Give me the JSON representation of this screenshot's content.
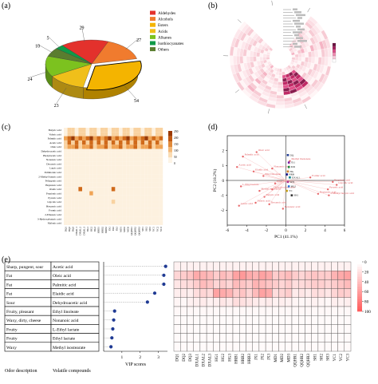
{
  "panels": {
    "a": {
      "label": "(a)"
    },
    "b": {
      "label": "(b)"
    },
    "c": {
      "label": "(c)"
    },
    "d": {
      "label": "(d)"
    },
    "e": {
      "label": "(e)"
    }
  },
  "colors": {
    "aldehydes": "#e3312c",
    "alcohols": "#f07b2e",
    "esters": "#f4b400",
    "acids": "#f0bf1a",
    "alkanes": "#7cc21f",
    "isothiocyanates": "#0f9a48",
    "others": "#5a7d2f",
    "heat_high": "#f5b4b4",
    "dot_navy": "#1f3a93"
  },
  "chart_data": [
    {
      "panel": "a",
      "type": "pie",
      "legend_position": "top-right",
      "categories": [
        "Aldehydes",
        "Alcohols",
        "Esters",
        "Acids",
        "Alkanes",
        "Isothiocyanates",
        "Others"
      ],
      "slice_labels": [
        "29",
        "27",
        "54",
        "23",
        "24",
        "5",
        "10"
      ],
      "values": [
        29,
        27,
        54,
        23,
        24,
        5,
        10
      ]
    },
    {
      "panel": "c",
      "type": "heatmap",
      "legend_position": "right",
      "colorbar_ticks": [
        "250",
        "200",
        "150",
        "100",
        "50",
        "0"
      ],
      "rows": [
        "Butyric acid",
        "Valeric acid",
        "Palmitic acid",
        "Acetic acid",
        "Oleic acid",
        "Dehydroacetic acid",
        "Phenylacetic acid",
        "Nonanoic acid",
        "Decanoic acid",
        "Lauric acid",
        "Palmitoleic acid",
        "2-Methyl butyric acid",
        "Pelargonic acid",
        "Heptanoic acid",
        "Oxalic acid",
        "Propionic acid",
        "Pyruvic acid",
        "Glycolic acid",
        "Hexanoic acid",
        "Formic acid",
        "2-Ethanoic acid",
        "3-Hydroxybutyric acid",
        "Malonic acid"
      ],
      "columns": [
        "DQ1",
        "DQ2",
        "DQ3",
        "DXAL1",
        "DXAL2",
        "DXAL3",
        "HG1",
        "HG2",
        "HG3",
        "HRB1",
        "HRB2",
        "HRB3",
        "JX1",
        "JX2",
        "JX3",
        "MD1",
        "MD2",
        "MD3",
        "QQHR1",
        "QQHR2",
        "QQHR3",
        "SH1",
        "SH2",
        "SH3",
        "YC1",
        "YC2",
        "YC3"
      ]
    },
    {
      "panel": "d",
      "type": "scatter",
      "xlabel": "PC1 (41.1%)",
      "ylabel": "PC2 (18.2%)",
      "xlim": [
        -6,
        6
      ],
      "ylim": [
        -3,
        3
      ],
      "xticks": [
        "-6",
        "-4",
        "-2",
        "0",
        "2",
        "4",
        "6"
      ],
      "yticks": [
        "2",
        "1",
        "0",
        "-1",
        "-2"
      ],
      "series": [
        {
          "name": "compounds",
          "points": [
            [
              -4.4,
              1.6
            ],
            [
              -3.0,
              1.9
            ],
            [
              -5.0,
              0.9
            ],
            [
              -3.3,
              0.6
            ],
            [
              -1.4,
              0.8
            ],
            [
              -2.3,
              0.3
            ],
            [
              0.4,
              1.3
            ],
            [
              -1.1,
              -0.2
            ],
            [
              -4.6,
              -0.4
            ],
            [
              -2.7,
              -0.7
            ],
            [
              -1.4,
              -0.6
            ],
            [
              -2.2,
              -1.1
            ],
            [
              -3.1,
              -1.5
            ],
            [
              -4.8,
              -1.7
            ],
            [
              -1.7,
              -1.6
            ],
            [
              -0.3,
              -1.9
            ],
            [
              2.5,
              0.2
            ],
            [
              4.8,
              -0.1
            ],
            [
              5.2,
              -0.3
            ],
            [
              4.3,
              -0.6
            ],
            [
              3.3,
              -0.9
            ],
            [
              4.4,
              -1.0
            ]
          ]
        },
        {
          "name": "samples",
          "points": [
            [
              0.2,
              1.7
            ],
            [
              0.3,
              1.2
            ],
            [
              0.3,
              0.9
            ],
            [
              0.2,
              0.6
            ],
            [
              0.4,
              0.2
            ],
            [
              0.2,
              -0.1
            ],
            [
              0.3,
              -0.4
            ],
            [
              0.1,
              -0.7
            ],
            [
              0.6,
              -1.0
            ],
            [
              0.1,
              0.4
            ]
          ]
        }
      ],
      "annotations": [
        "Palmitic acid",
        "Oleic acid",
        "Acetic acid",
        "Elaidic acid",
        "Nonanoic acid",
        "Ethyl linoleate",
        "Methyl linolenate",
        "Ethyl lactate",
        "L-Ethyl lactate",
        "Methyl isostearate",
        "Dehydroacetic acid",
        "Butyric acid",
        "Valeric acid",
        "Lauric acid",
        "Decanoic acid",
        "Hexanoic acid",
        "Formic acid",
        "Propionic acid",
        "Glycolic acid",
        "Pyruvic acid",
        "Heptanoic acid",
        "2-Methyl butyric acid",
        "Octanoic acid"
      ],
      "sample_labels": [
        "DQ",
        "JX1",
        "MD",
        "HG",
        "DXAL1",
        "SH3",
        "HG2",
        "YC",
        "SH1",
        "HRB"
      ]
    },
    {
      "panel": "e",
      "type": "scatter",
      "xlabel": "VIP scores",
      "xlim": [
        0,
        3.5
      ],
      "xticks": [
        "1",
        "2",
        "3"
      ],
      "rows": [
        {
          "odor": "Sharp, pungent, sour",
          "compound": "Acetic acid",
          "vip": 3.4
        },
        {
          "odor": "Fat",
          "compound": "Oleic acid",
          "vip": 3.3
        },
        {
          "odor": "Fat",
          "compound": "Palmitic acid",
          "vip": 3.3
        },
        {
          "odor": "Fat",
          "compound": "Elaidic acid",
          "vip": 2.8
        },
        {
          "odor": "Sour",
          "compound": "Dehydroacetic acid",
          "vip": 2.4
        },
        {
          "odor": "Fruity, pleasant",
          "compound": "Ethyl linoleate",
          "vip": 0.6
        },
        {
          "odor": "Waxy, dirty, cheese",
          "compound": "Nonanoic acid",
          "vip": 0.55
        },
        {
          "odor": "Fruity",
          "compound": "L-Ethyl lactate",
          "vip": 0.5
        },
        {
          "odor": "Fruity",
          "compound": "Ethyl lactate",
          "vip": 0.45
        },
        {
          "odor": "Waxy",
          "compound": "Methyl isostearate",
          "vip": 0.4
        }
      ]
    },
    {
      "panel": "e",
      "type": "heatmap",
      "legend_position": "right",
      "colorbar_ticks": [
        "0",
        "20",
        "40",
        "60",
        "80",
        "100"
      ],
      "columns": [
        "DQ1",
        "DQ2",
        "DQ3",
        "DXAL1",
        "DXAL2",
        "DXAL3",
        "HG1",
        "HG2",
        "HG3",
        "HRB1",
        "HRB2",
        "HRB3",
        "JX1",
        "JX2",
        "JX3",
        "MD1",
        "MD2",
        "MD3",
        "QQHR1",
        "QQHR2",
        "QQHR3",
        "SH1",
        "SH2",
        "SH3",
        "YC1",
        "YC2",
        "YC3"
      ],
      "values": [
        [
          8,
          8,
          8,
          8,
          8,
          8,
          8,
          8,
          8,
          8,
          8,
          8,
          8,
          8,
          8,
          8,
          8,
          8,
          8,
          8,
          8,
          8,
          8,
          8,
          8,
          8,
          8
        ],
        [
          25,
          30,
          35,
          50,
          45,
          40,
          30,
          40,
          35,
          55,
          60,
          50,
          45,
          55,
          50,
          30,
          35,
          40,
          30,
          25,
          30,
          35,
          30,
          30,
          45,
          50,
          55
        ],
        [
          15,
          20,
          22,
          30,
          40,
          35,
          25,
          30,
          25,
          40,
          35,
          30,
          45,
          40,
          35,
          30,
          25,
          30,
          20,
          22,
          25,
          30,
          28,
          25,
          30,
          35,
          40
        ],
        [
          10,
          12,
          10,
          20,
          25,
          22,
          55,
          50,
          45,
          30,
          35,
          25,
          40,
          55,
          50,
          20,
          25,
          30,
          12,
          15,
          12,
          20,
          18,
          15,
          25,
          30,
          28
        ],
        [
          6,
          5,
          8,
          10,
          12,
          8,
          10,
          15,
          12,
          20,
          18,
          15,
          12,
          10,
          12,
          8,
          10,
          8,
          6,
          5,
          6,
          8,
          6,
          5,
          10,
          8,
          10
        ],
        [
          4,
          4,
          4,
          4,
          4,
          4,
          4,
          4,
          4,
          4,
          4,
          4,
          4,
          4,
          4,
          4,
          4,
          4,
          4,
          4,
          4,
          4,
          4,
          4,
          4,
          4,
          4
        ],
        [
          3,
          3,
          3,
          3,
          3,
          3,
          3,
          3,
          3,
          3,
          3,
          3,
          3,
          3,
          3,
          3,
          3,
          3,
          3,
          3,
          3,
          3,
          3,
          3,
          3,
          3,
          3
        ],
        [
          3,
          3,
          3,
          3,
          3,
          3,
          3,
          3,
          3,
          3,
          3,
          3,
          3,
          3,
          3,
          3,
          3,
          3,
          3,
          3,
          3,
          3,
          3,
          3,
          3,
          3,
          3
        ],
        [
          3,
          3,
          3,
          3,
          3,
          3,
          3,
          3,
          3,
          3,
          3,
          3,
          3,
          3,
          3,
          3,
          3,
          3,
          3,
          3,
          3,
          3,
          3,
          3,
          3,
          3,
          3
        ],
        [
          3,
          3,
          3,
          3,
          3,
          3,
          3,
          3,
          3,
          3,
          3,
          3,
          3,
          3,
          3,
          3,
          3,
          3,
          3,
          3,
          3,
          3,
          3,
          3,
          3,
          3,
          3
        ]
      ],
      "headers": {
        "odor": "Odor description",
        "compound": "Volatile compounds",
        "vip": "VIP scores"
      }
    }
  ]
}
